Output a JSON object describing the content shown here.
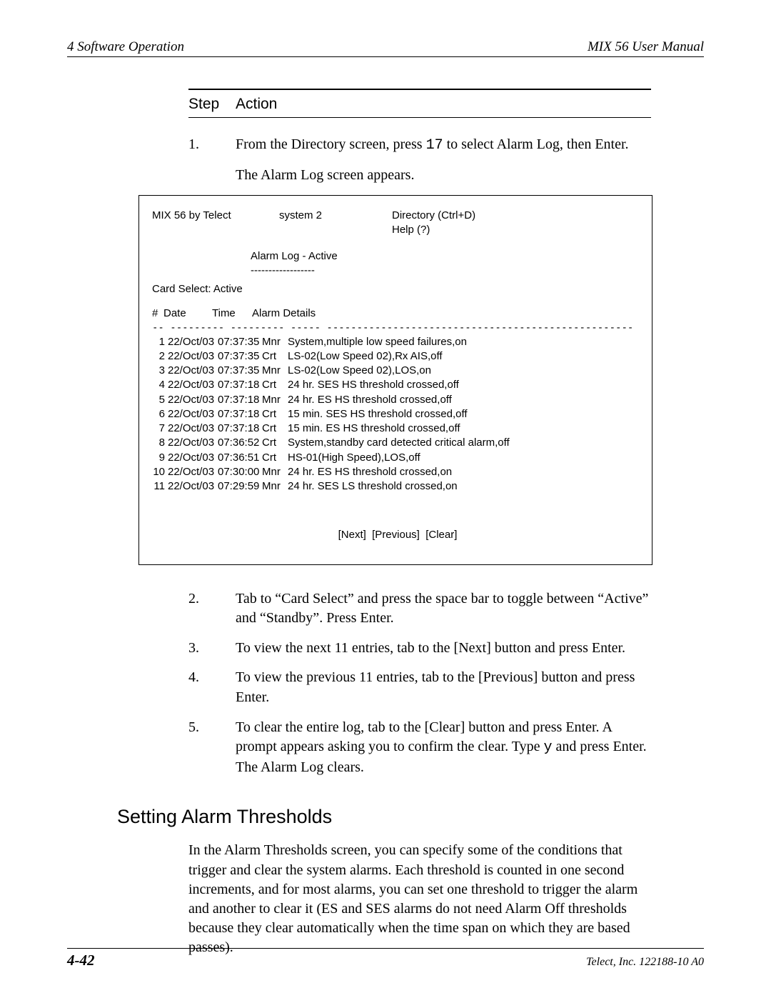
{
  "header": {
    "left": "4  Software Operation",
    "right": "MIX 56 User Manual"
  },
  "stepTable": {
    "col1": "Step",
    "col2": "Action"
  },
  "steps": {
    "s1": {
      "num": "1.",
      "text_a": "From the Directory screen, press ",
      "keycode": "17",
      "text_b": " to select Alarm Log, then Enter.",
      "sub": "The Alarm Log screen appears."
    },
    "s2": {
      "num": "2.",
      "text": "Tab to “Card Select” and press the space bar to toggle between “Active” and “Standby”. Press Enter."
    },
    "s3": {
      "num": "3.",
      "text": "To view the next 11 entries, tab to the [Next] button and press Enter."
    },
    "s4": {
      "num": "4.",
      "text": "To view the previous 11 entries, tab to the [Previous] button and press Enter."
    },
    "s5": {
      "num": "5.",
      "text_a": "To clear the entire log, tab to the [Clear] button and press Enter. A prompt appears asking you to confirm the clear. Type ",
      "keycode": "y",
      "text_b": " and press Enter. The Alarm Log clears."
    }
  },
  "terminal": {
    "top": {
      "product": "MIX 56 by Telect",
      "system": "system 2",
      "dir": "Directory (Ctrl+D)",
      "help": "Help (?)"
    },
    "title": "Alarm Log - Active",
    "titleDash": "------------------",
    "cardSelect": "Card Select: Active",
    "columns": {
      "num": "#",
      "date": "Date",
      "time": "Time",
      "details": "Alarm Details"
    },
    "sep": "-- --------- --------- ----- ---------------------------------------------------",
    "rows": [
      {
        "n": "1",
        "d": "22/Oct/03",
        "t": "07:37:35",
        "s": "Mnr",
        "det": "System,multiple low speed failures,on"
      },
      {
        "n": "2",
        "d": "22/Oct/03",
        "t": "07:37:35",
        "s": "Crt",
        "det": "LS-02(Low Speed 02),Rx AIS,off"
      },
      {
        "n": "3",
        "d": "22/Oct/03",
        "t": "07:37:35",
        "s": "Mnr",
        "det": "LS-02(Low Speed 02),LOS,on"
      },
      {
        "n": "4",
        "d": "22/Oct/03",
        "t": "07:37:18",
        "s": "Crt",
        "det": "24 hr. SES HS threshold crossed,off"
      },
      {
        "n": "5",
        "d": "22/Oct/03",
        "t": "07:37:18",
        "s": "Mnr",
        "det": "24 hr. ES HS threshold crossed,off"
      },
      {
        "n": "6",
        "d": "22/Oct/03",
        "t": "07:37:18",
        "s": "Crt",
        "det": "15 min. SES HS threshold crossed,off"
      },
      {
        "n": "7",
        "d": "22/Oct/03",
        "t": "07:37:18",
        "s": "Crt",
        "det": "15 min. ES HS threshold crossed,off"
      },
      {
        "n": "8",
        "d": "22/Oct/03",
        "t": "07:36:52",
        "s": "Crt",
        "det": "System,standby card detected critical alarm,off"
      },
      {
        "n": "9",
        "d": "22/Oct/03",
        "t": "07:36:51",
        "s": "Crt",
        "det": "HS-01(High Speed),LOS,off"
      },
      {
        "n": "10",
        "d": "22/Oct/03",
        "t": "07:30:00",
        "s": "Mnr",
        "det": "24 hr. ES HS threshold crossed,on"
      },
      {
        "n": "11",
        "d": "22/Oct/03",
        "t": "07:29:59",
        "s": "Mnr",
        "det": "24 hr. SES LS threshold crossed,on"
      }
    ],
    "buttons": {
      "next": "[Next]",
      "prev": "[Previous]",
      "clear": "[Clear]"
    }
  },
  "section": {
    "heading": "Setting Alarm Thresholds",
    "body": "In the Alarm Thresholds screen, you can specify some of the conditions that trigger and clear the system alarms. Each threshold is counted in one second increments, and for most alarms, you can set one threshold to trigger the alarm and another to clear it (ES and SES alarms do not need Alarm Off thresholds because they clear automatically when the time span on which they are based passes)."
  },
  "footer": {
    "page": "4-42",
    "company": "Telect, Inc.  122188-10 A0"
  }
}
